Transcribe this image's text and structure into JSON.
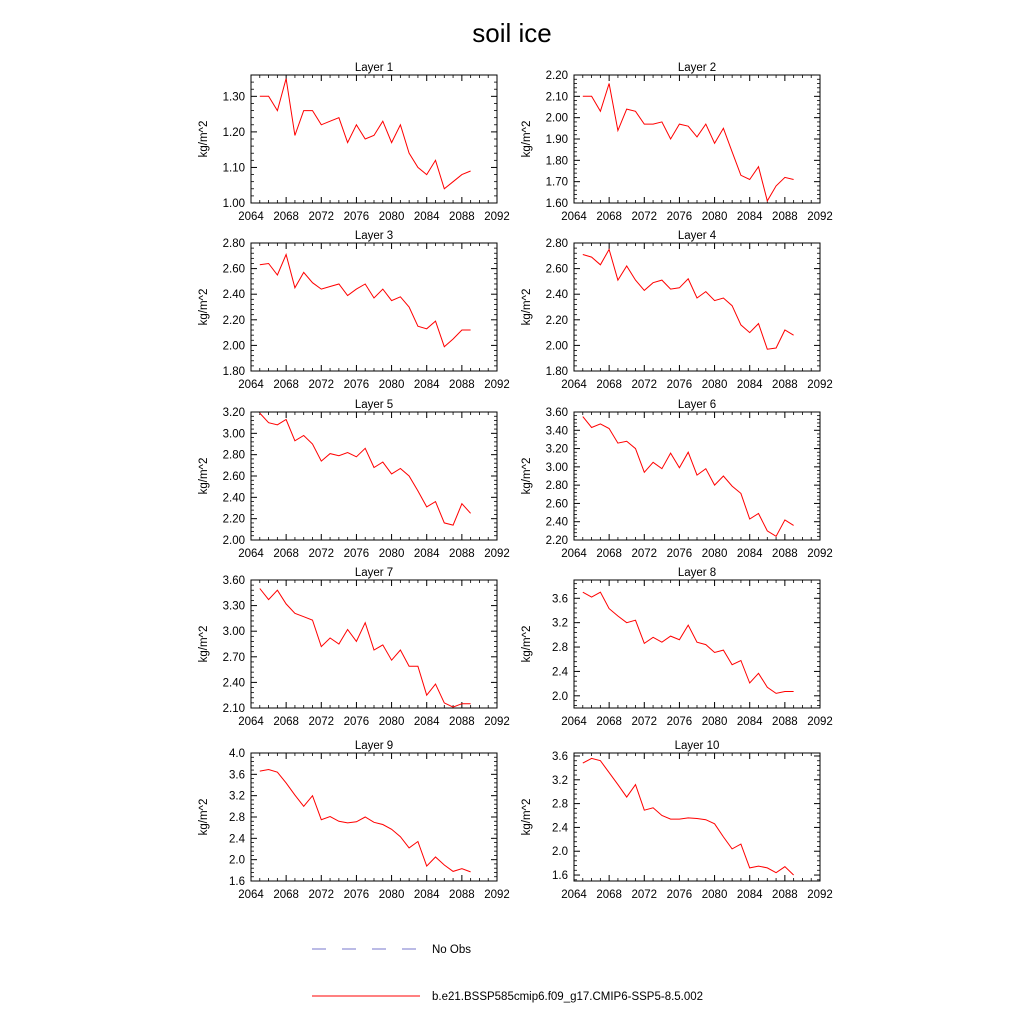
{
  "figure_title": "soil ice",
  "chart_data": [
    {
      "type": "line",
      "title": "Layer 1",
      "ylabel": "kg/m^2",
      "xlim": [
        2064,
        2092
      ],
      "ylim": [
        1.0,
        1.36
      ],
      "xticks": [
        2064,
        2068,
        2072,
        2076,
        2080,
        2084,
        2088,
        2092
      ],
      "xtick_labels": [
        "2064",
        "2068",
        "2072",
        "2076",
        "2080",
        "2084",
        "2088",
        "2092"
      ],
      "yticks": [
        1.0,
        1.1,
        1.2,
        1.3
      ],
      "ytick_labels": [
        "1.00",
        "1.10",
        "1.20",
        "1.30"
      ],
      "x": [
        2065,
        2066,
        2067,
        2068,
        2069,
        2070,
        2071,
        2072,
        2073,
        2074,
        2075,
        2076,
        2077,
        2078,
        2079,
        2080,
        2081,
        2082,
        2083,
        2084,
        2085,
        2086,
        2087,
        2088,
        2089
      ],
      "series": [
        {
          "name": "b.e21.BSSP585cmip6.f09_g17.CMIP6-SSP5-8.5.002",
          "color": "#ff0000",
          "values": [
            1.3,
            1.3,
            1.26,
            1.35,
            1.19,
            1.26,
            1.26,
            1.22,
            1.23,
            1.24,
            1.17,
            1.22,
            1.18,
            1.19,
            1.23,
            1.17,
            1.22,
            1.14,
            1.1,
            1.08,
            1.12,
            1.04,
            1.06,
            1.08,
            1.09
          ]
        }
      ]
    },
    {
      "type": "line",
      "title": "Layer 2",
      "ylabel": "kg/m^2",
      "xlim": [
        2064,
        2092
      ],
      "ylim": [
        1.6,
        2.2
      ],
      "xticks": [
        2064,
        2068,
        2072,
        2076,
        2080,
        2084,
        2088,
        2092
      ],
      "xtick_labels": [
        "2064",
        "2068",
        "2072",
        "2076",
        "2080",
        "2084",
        "2088",
        "2092"
      ],
      "yticks": [
        1.6,
        1.7,
        1.8,
        1.9,
        2.0,
        2.1,
        2.2
      ],
      "ytick_labels": [
        "1.60",
        "1.70",
        "1.80",
        "1.90",
        "2.00",
        "2.10",
        "2.20"
      ],
      "x": [
        2065,
        2066,
        2067,
        2068,
        2069,
        2070,
        2071,
        2072,
        2073,
        2074,
        2075,
        2076,
        2077,
        2078,
        2079,
        2080,
        2081,
        2082,
        2083,
        2084,
        2085,
        2086,
        2087,
        2088,
        2089
      ],
      "series": [
        {
          "name": "b.e21.BSSP585cmip6.f09_g17.CMIP6-SSP5-8.5.002",
          "color": "#ff0000",
          "values": [
            2.1,
            2.1,
            2.03,
            2.16,
            1.94,
            2.04,
            2.03,
            1.97,
            1.97,
            1.98,
            1.9,
            1.97,
            1.96,
            1.91,
            1.97,
            1.88,
            1.95,
            1.84,
            1.73,
            1.71,
            1.77,
            1.61,
            1.68,
            1.72,
            1.71
          ]
        }
      ]
    },
    {
      "type": "line",
      "title": "Layer 3",
      "ylabel": "kg/m^2",
      "xlim": [
        2064,
        2092
      ],
      "ylim": [
        1.8,
        2.8
      ],
      "xticks": [
        2064,
        2068,
        2072,
        2076,
        2080,
        2084,
        2088,
        2092
      ],
      "xtick_labels": [
        "2064",
        "2068",
        "2072",
        "2076",
        "2080",
        "2084",
        "2088",
        "2092"
      ],
      "yticks": [
        1.8,
        2.0,
        2.2,
        2.4,
        2.6,
        2.8
      ],
      "ytick_labels": [
        "1.80",
        "2.00",
        "2.20",
        "2.40",
        "2.60",
        "2.80"
      ],
      "x": [
        2065,
        2066,
        2067,
        2068,
        2069,
        2070,
        2071,
        2072,
        2073,
        2074,
        2075,
        2076,
        2077,
        2078,
        2079,
        2080,
        2081,
        2082,
        2083,
        2084,
        2085,
        2086,
        2087,
        2088,
        2089
      ],
      "series": [
        {
          "name": "b.e21.BSSP585cmip6.f09_g17.CMIP6-SSP5-8.5.002",
          "color": "#ff0000",
          "values": [
            2.63,
            2.64,
            2.55,
            2.71,
            2.45,
            2.57,
            2.49,
            2.44,
            2.46,
            2.48,
            2.39,
            2.44,
            2.48,
            2.37,
            2.44,
            2.35,
            2.38,
            2.3,
            2.15,
            2.13,
            2.19,
            1.99,
            2.05,
            2.12,
            2.12
          ]
        }
      ]
    },
    {
      "type": "line",
      "title": "Layer 4",
      "ylabel": "kg/m^2",
      "xlim": [
        2064,
        2092
      ],
      "ylim": [
        1.8,
        2.8
      ],
      "xticks": [
        2064,
        2068,
        2072,
        2076,
        2080,
        2084,
        2088,
        2092
      ],
      "xtick_labels": [
        "2064",
        "2068",
        "2072",
        "2076",
        "2080",
        "2084",
        "2088",
        "2092"
      ],
      "yticks": [
        1.8,
        2.0,
        2.2,
        2.4,
        2.6,
        2.8
      ],
      "ytick_labels": [
        "1.80",
        "2.00",
        "2.20",
        "2.40",
        "2.60",
        "2.80"
      ],
      "x": [
        2065,
        2066,
        2067,
        2068,
        2069,
        2070,
        2071,
        2072,
        2073,
        2074,
        2075,
        2076,
        2077,
        2078,
        2079,
        2080,
        2081,
        2082,
        2083,
        2084,
        2085,
        2086,
        2087,
        2088,
        2089
      ],
      "series": [
        {
          "name": "b.e21.BSSP585cmip6.f09_g17.CMIP6-SSP5-8.5.002",
          "color": "#ff0000",
          "values": [
            2.71,
            2.69,
            2.63,
            2.75,
            2.51,
            2.62,
            2.51,
            2.43,
            2.49,
            2.51,
            2.44,
            2.45,
            2.52,
            2.37,
            2.42,
            2.35,
            2.37,
            2.31,
            2.16,
            2.1,
            2.17,
            1.97,
            1.98,
            2.12,
            2.08
          ]
        }
      ]
    },
    {
      "type": "line",
      "title": "Layer 5",
      "ylabel": "kg/m^2",
      "xlim": [
        2064,
        2092
      ],
      "ylim": [
        2.0,
        3.2
      ],
      "xticks": [
        2064,
        2068,
        2072,
        2076,
        2080,
        2084,
        2088,
        2092
      ],
      "xtick_labels": [
        "2064",
        "2068",
        "2072",
        "2076",
        "2080",
        "2084",
        "2088",
        "2092"
      ],
      "yticks": [
        2.0,
        2.2,
        2.4,
        2.6,
        2.8,
        3.0,
        3.2
      ],
      "ytick_labels": [
        "2.00",
        "2.20",
        "2.40",
        "2.60",
        "2.80",
        "3.00",
        "3.20"
      ],
      "x": [
        2065,
        2066,
        2067,
        2068,
        2069,
        2070,
        2071,
        2072,
        2073,
        2074,
        2075,
        2076,
        2077,
        2078,
        2079,
        2080,
        2081,
        2082,
        2083,
        2084,
        2085,
        2086,
        2087,
        2088,
        2089
      ],
      "series": [
        {
          "name": "b.e21.BSSP585cmip6.f09_g17.CMIP6-SSP5-8.5.002",
          "color": "#ff0000",
          "values": [
            3.19,
            3.1,
            3.08,
            3.13,
            2.93,
            2.98,
            2.9,
            2.74,
            2.81,
            2.79,
            2.82,
            2.78,
            2.86,
            2.68,
            2.73,
            2.62,
            2.67,
            2.6,
            2.46,
            2.31,
            2.36,
            2.16,
            2.14,
            2.34,
            2.25
          ]
        }
      ]
    },
    {
      "type": "line",
      "title": "Layer 6",
      "ylabel": "kg/m^2",
      "xlim": [
        2064,
        2092
      ],
      "ylim": [
        2.2,
        3.6
      ],
      "xticks": [
        2064,
        2068,
        2072,
        2076,
        2080,
        2084,
        2088,
        2092
      ],
      "xtick_labels": [
        "2064",
        "2068",
        "2072",
        "2076",
        "2080",
        "2084",
        "2088",
        "2092"
      ],
      "yticks": [
        2.2,
        2.4,
        2.6,
        2.8,
        3.0,
        3.2,
        3.4,
        3.6
      ],
      "ytick_labels": [
        "2.20",
        "2.40",
        "2.60",
        "2.80",
        "3.00",
        "3.20",
        "3.40",
        "3.60"
      ],
      "x": [
        2065,
        2066,
        2067,
        2068,
        2069,
        2070,
        2071,
        2072,
        2073,
        2074,
        2075,
        2076,
        2077,
        2078,
        2079,
        2080,
        2081,
        2082,
        2083,
        2084,
        2085,
        2086,
        2087,
        2088,
        2089
      ],
      "series": [
        {
          "name": "b.e21.BSSP585cmip6.f09_g17.CMIP6-SSP5-8.5.002",
          "color": "#ff0000",
          "values": [
            3.55,
            3.43,
            3.47,
            3.42,
            3.26,
            3.28,
            3.2,
            2.94,
            3.05,
            2.98,
            3.15,
            2.99,
            3.16,
            2.91,
            2.98,
            2.8,
            2.9,
            2.79,
            2.71,
            2.43,
            2.49,
            2.3,
            2.24,
            2.42,
            2.36
          ]
        }
      ]
    },
    {
      "type": "line",
      "title": "Layer 7",
      "ylabel": "kg/m^2",
      "xlim": [
        2064,
        2092
      ],
      "ylim": [
        2.1,
        3.6
      ],
      "xticks": [
        2064,
        2068,
        2072,
        2076,
        2080,
        2084,
        2088,
        2092
      ],
      "xtick_labels": [
        "2064",
        "2068",
        "2072",
        "2076",
        "2080",
        "2084",
        "2088",
        "2092"
      ],
      "yticks": [
        2.1,
        2.4,
        2.7,
        3.0,
        3.3,
        3.6
      ],
      "ytick_labels": [
        "2.10",
        "2.40",
        "2.70",
        "3.00",
        "3.30",
        "3.60"
      ],
      "x": [
        2065,
        2066,
        2067,
        2068,
        2069,
        2070,
        2071,
        2072,
        2073,
        2074,
        2075,
        2076,
        2077,
        2078,
        2079,
        2080,
        2081,
        2082,
        2083,
        2084,
        2085,
        2086,
        2087,
        2088,
        2089
      ],
      "series": [
        {
          "name": "b.e21.BSSP585cmip6.f09_g17.CMIP6-SSP5-8.5.002",
          "color": "#ff0000",
          "values": [
            3.5,
            3.37,
            3.48,
            3.32,
            3.21,
            3.17,
            3.13,
            2.82,
            2.92,
            2.85,
            3.02,
            2.88,
            3.1,
            2.78,
            2.84,
            2.66,
            2.78,
            2.59,
            2.59,
            2.25,
            2.38,
            2.16,
            2.11,
            2.15,
            2.15
          ]
        }
      ]
    },
    {
      "type": "line",
      "title": "Layer 8",
      "ylabel": "kg/m^2",
      "xlim": [
        2064,
        2092
      ],
      "ylim": [
        1.8,
        3.9
      ],
      "xticks": [
        2064,
        2068,
        2072,
        2076,
        2080,
        2084,
        2088,
        2092
      ],
      "xtick_labels": [
        "2064",
        "2068",
        "2072",
        "2076",
        "2080",
        "2084",
        "2088",
        "2092"
      ],
      "yticks": [
        2.0,
        2.4,
        2.8,
        3.2,
        3.6
      ],
      "ytick_labels": [
        "2.0",
        "2.4",
        "2.8",
        "3.2",
        "3.6"
      ],
      "x": [
        2065,
        2066,
        2067,
        2068,
        2069,
        2070,
        2071,
        2072,
        2073,
        2074,
        2075,
        2076,
        2077,
        2078,
        2079,
        2080,
        2081,
        2082,
        2083,
        2084,
        2085,
        2086,
        2087,
        2088,
        2089
      ],
      "series": [
        {
          "name": "b.e21.BSSP585cmip6.f09_g17.CMIP6-SSP5-8.5.002",
          "color": "#ff0000",
          "values": [
            3.7,
            3.62,
            3.7,
            3.43,
            3.31,
            3.2,
            3.24,
            2.86,
            2.96,
            2.88,
            2.98,
            2.92,
            3.16,
            2.88,
            2.84,
            2.71,
            2.75,
            2.51,
            2.58,
            2.21,
            2.37,
            2.14,
            2.04,
            2.07,
            2.07
          ]
        }
      ]
    },
    {
      "type": "line",
      "title": "Layer 9",
      "ylabel": "kg/m^2",
      "xlim": [
        2064,
        2092
      ],
      "ylim": [
        1.6,
        4.0
      ],
      "xticks": [
        2064,
        2068,
        2072,
        2076,
        2080,
        2084,
        2088,
        2092
      ],
      "xtick_labels": [
        "2064",
        "2068",
        "2072",
        "2076",
        "2080",
        "2084",
        "2088",
        "2092"
      ],
      "yticks": [
        1.6,
        2.0,
        2.4,
        2.8,
        3.2,
        3.6,
        4.0
      ],
      "ytick_labels": [
        "1.6",
        "2.0",
        "2.4",
        "2.8",
        "3.2",
        "3.6",
        "4.0"
      ],
      "x": [
        2065,
        2066,
        2067,
        2068,
        2069,
        2070,
        2071,
        2072,
        2073,
        2074,
        2075,
        2076,
        2077,
        2078,
        2079,
        2080,
        2081,
        2082,
        2083,
        2084,
        2085,
        2086,
        2087,
        2088,
        2089
      ],
      "series": [
        {
          "name": "b.e21.BSSP585cmip6.f09_g17.CMIP6-SSP5-8.5.002",
          "color": "#ff0000",
          "values": [
            3.66,
            3.69,
            3.64,
            3.44,
            3.21,
            3.0,
            3.2,
            2.75,
            2.81,
            2.72,
            2.69,
            2.71,
            2.8,
            2.7,
            2.66,
            2.57,
            2.43,
            2.22,
            2.34,
            1.88,
            2.05,
            1.9,
            1.78,
            1.83,
            1.77
          ]
        }
      ]
    },
    {
      "type": "line",
      "title": "Layer 10",
      "ylabel": "kg/m^2",
      "xlim": [
        2064,
        2092
      ],
      "ylim": [
        1.5,
        3.65
      ],
      "xticks": [
        2064,
        2068,
        2072,
        2076,
        2080,
        2084,
        2088,
        2092
      ],
      "xtick_labels": [
        "2064",
        "2068",
        "2072",
        "2076",
        "2080",
        "2084",
        "2088",
        "2092"
      ],
      "yticks": [
        1.6,
        2.0,
        2.4,
        2.8,
        3.2,
        3.6
      ],
      "ytick_labels": [
        "1.6",
        "2.0",
        "2.4",
        "2.8",
        "3.2",
        "3.6"
      ],
      "x": [
        2065,
        2066,
        2067,
        2068,
        2069,
        2070,
        2071,
        2072,
        2073,
        2074,
        2075,
        2076,
        2077,
        2078,
        2079,
        2080,
        2081,
        2082,
        2083,
        2084,
        2085,
        2086,
        2087,
        2088,
        2089
      ],
      "series": [
        {
          "name": "b.e21.BSSP585cmip6.f09_g17.CMIP6-SSP5-8.5.002",
          "color": "#ff0000",
          "values": [
            3.48,
            3.56,
            3.52,
            3.32,
            3.12,
            2.91,
            3.12,
            2.69,
            2.73,
            2.6,
            2.54,
            2.54,
            2.56,
            2.55,
            2.53,
            2.46,
            2.24,
            2.04,
            2.12,
            1.72,
            1.75,
            1.72,
            1.64,
            1.74,
            1.6
          ]
        }
      ]
    }
  ],
  "legend": [
    {
      "label": "No Obs",
      "style": "dashed",
      "color": "#7777cc"
    },
    {
      "label": "b.e21.BSSP585cmip6.f09_g17.CMIP6-SSP5-8.5.002",
      "style": "solid",
      "color": "#ff0000"
    }
  ]
}
